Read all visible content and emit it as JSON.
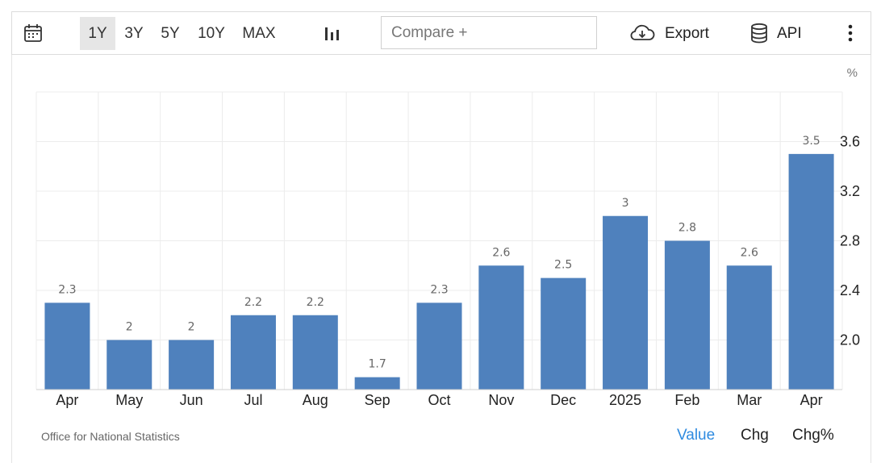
{
  "toolbar": {
    "icons": {
      "calendar": "calendar-icon",
      "chart_type": "bar-chart-icon",
      "export": "cloud-download-icon",
      "api": "database-icon",
      "more": "more-vertical-icon"
    },
    "ranges": [
      "1Y",
      "3Y",
      "5Y",
      "10Y",
      "MAX"
    ],
    "active_range": "1Y",
    "compare_placeholder": "Compare +",
    "export_label": "Export",
    "api_label": "API"
  },
  "chart_data": {
    "type": "bar",
    "unit": "%",
    "categories": [
      "Apr",
      "May",
      "Jun",
      "Jul",
      "Aug",
      "Sep",
      "Oct",
      "Nov",
      "Dec",
      "2025",
      "Feb",
      "Mar",
      "Apr"
    ],
    "values": [
      2.3,
      2,
      2,
      2.2,
      2.2,
      1.7,
      2.3,
      2.6,
      2.5,
      3,
      2.8,
      2.6,
      3.5
    ],
    "y_ticks": [
      2.0,
      2.4,
      2.8,
      3.2,
      3.6
    ],
    "ylim": [
      1.6,
      4.0
    ],
    "bar_color": "#4f81bd",
    "grid": true
  },
  "footer": {
    "source": "Office for National Statistics",
    "tabs": [
      "Value",
      "Chg",
      "Chg%"
    ],
    "active_tab": "Value"
  }
}
